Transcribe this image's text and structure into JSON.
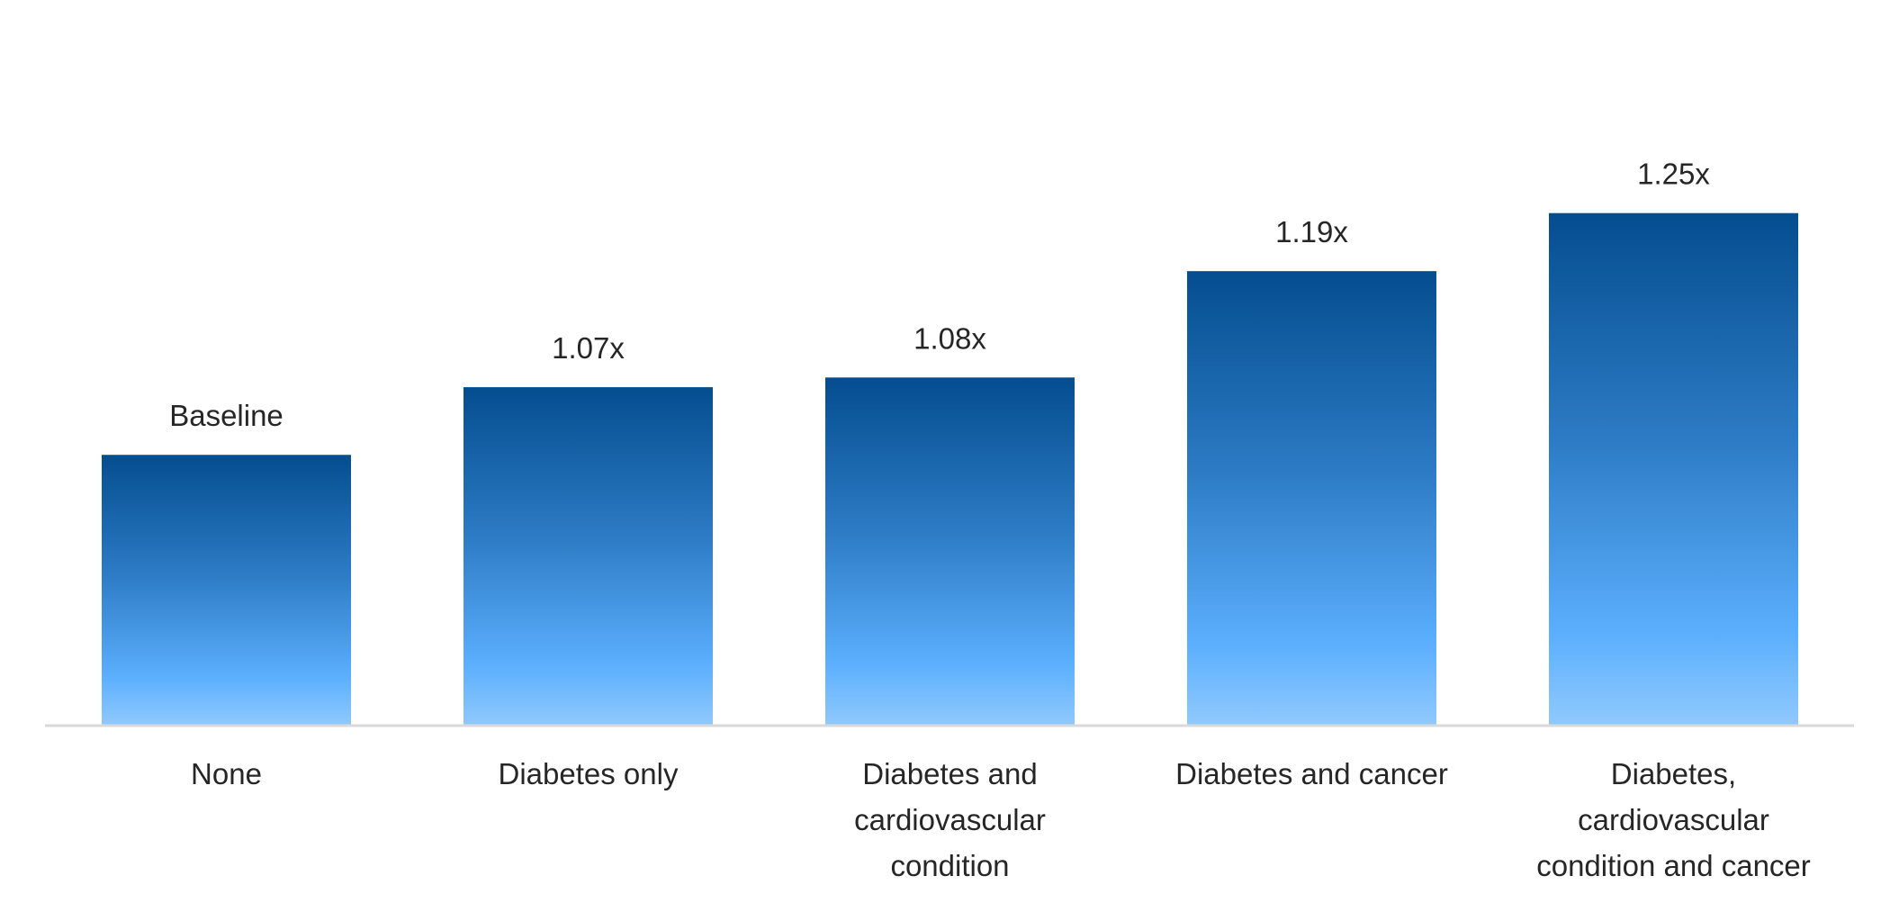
{
  "chart_data": {
    "type": "bar",
    "title": "",
    "xlabel": "",
    "ylabel": "",
    "categories": [
      [
        "None"
      ],
      [
        "Diabetes only"
      ],
      [
        "Diabetes and",
        "cardiovascular",
        "condition"
      ],
      [
        "Diabetes and cancer"
      ],
      [
        "Diabetes,",
        "cardiovascular",
        "condition and cancer"
      ]
    ],
    "values": [
      1.0,
      1.07,
      1.08,
      1.19,
      1.25
    ],
    "data_labels": [
      "Baseline",
      "1.07x",
      "1.08x",
      "1.19x",
      "1.25x"
    ],
    "ylim": [
      0.72,
      1.3
    ],
    "grid": false,
    "legend": "none",
    "colors": {
      "bar_top": "#044D8F",
      "bar_mid": "#2E7CC6",
      "bar_light": "#5BAFFD",
      "bar_bottom": "#90C9FD",
      "axis": "#D9D9D9",
      "text": "#262626"
    }
  }
}
